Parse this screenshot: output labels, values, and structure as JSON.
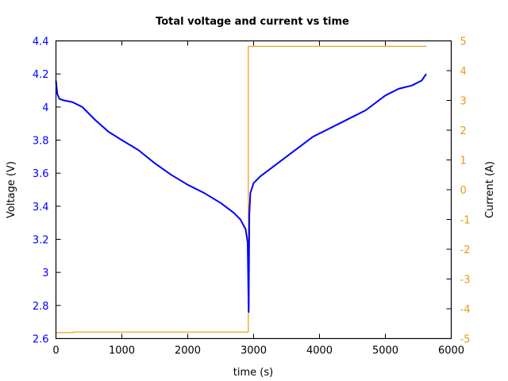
{
  "chart_data": {
    "type": "line",
    "title": "Total voltage and current vs time",
    "xlabel": "time (s)",
    "ylabel": "Voltage (V)",
    "y2label": "Current (A)",
    "xlim": [
      0,
      6000
    ],
    "ylim": [
      2.6,
      4.4
    ],
    "y2lim": [
      -5,
      5
    ],
    "xticks": [
      "0",
      "1000",
      "2000",
      "3000",
      "4000",
      "5000",
      "6000"
    ],
    "yticks": [
      "2.6",
      "2.8",
      "3",
      "3.2",
      "3.4",
      "3.6",
      "3.8",
      "4",
      "4.2",
      "4.4"
    ],
    "y2ticks": [
      "-5",
      "-4",
      "-3",
      "-2",
      "-1",
      "0",
      "1",
      "2",
      "3",
      "4",
      "5"
    ],
    "grid": false,
    "legend": null,
    "colors": {
      "voltage": "#0000ff",
      "current": "#e89c0c",
      "axes": "#000000"
    },
    "series": [
      {
        "name": "Voltage",
        "axis": "left",
        "x": [
          0,
          20,
          50,
          120,
          250,
          400,
          600,
          800,
          1000,
          1250,
          1500,
          1750,
          2000,
          2250,
          2500,
          2700,
          2800,
          2880,
          2910,
          2925,
          2935,
          2950,
          3000,
          3100,
          3300,
          3500,
          3700,
          3900,
          4100,
          4300,
          4500,
          4700,
          4900,
          5000,
          5200,
          5400,
          5550,
          5620
        ],
        "values": [
          4.16,
          4.08,
          4.05,
          4.04,
          4.03,
          4.0,
          3.92,
          3.85,
          3.8,
          3.74,
          3.66,
          3.59,
          3.53,
          3.48,
          3.42,
          3.36,
          3.32,
          3.26,
          3.18,
          2.76,
          3.35,
          3.48,
          3.54,
          3.58,
          3.64,
          3.7,
          3.76,
          3.82,
          3.86,
          3.9,
          3.94,
          3.98,
          4.04,
          4.07,
          4.11,
          4.13,
          4.16,
          4.2
        ]
      },
      {
        "name": "Current",
        "axis": "right",
        "x": [
          0,
          270,
          270,
          2920,
          2920,
          5625
        ],
        "values": [
          -4.8,
          -4.8,
          -4.78,
          -4.78,
          4.82,
          4.82
        ]
      }
    ]
  }
}
